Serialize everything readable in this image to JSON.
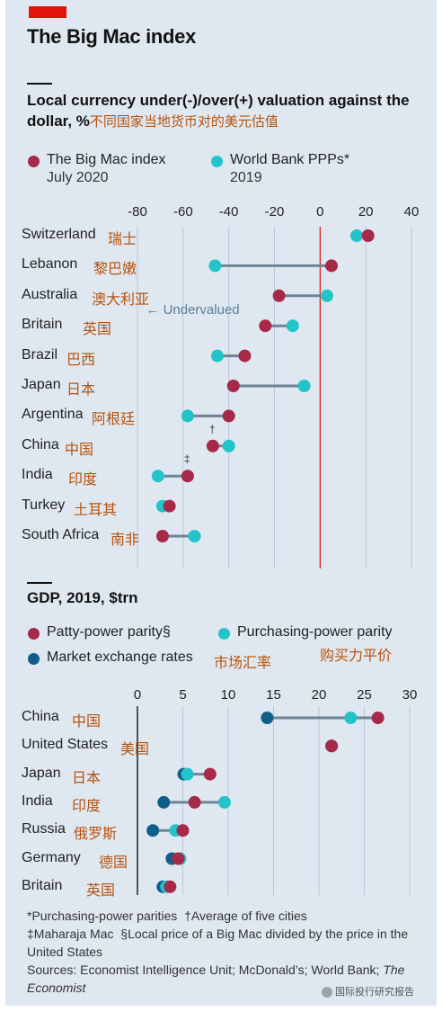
{
  "header": {
    "title": "The Big Mac index"
  },
  "chart_data": [
    {
      "type": "dot",
      "title": "Local currency under(-)/over(+) valuation against the dollar, %",
      "title_note": "不同国家当地货币对的美元估值",
      "annotation": "← Undervalued",
      "xlim": [
        -80,
        40
      ],
      "xticks": [
        "-80",
        "-60",
        "-40",
        "-20",
        "0",
        "20",
        "40"
      ],
      "xtick_values": [
        -80,
        -60,
        -40,
        -20,
        0,
        20,
        40
      ],
      "grid": true,
      "legend_position": "top",
      "series": [
        {
          "name": "The Big Mac index",
          "sub": "July 2020",
          "color": "#a6294a"
        },
        {
          "name": "World Bank PPPs*",
          "sub": "2019",
          "color": "#22c3c9"
        }
      ],
      "rows": [
        {
          "label": "Switzerland",
          "label_cn": "瑞士",
          "mark": "",
          "bigmac": 21,
          "ppp": 16
        },
        {
          "label": "Lebanon",
          "label_cn": "黎巴嫩",
          "mark": "",
          "bigmac": 5,
          "ppp": -46
        },
        {
          "label": "Australia",
          "label_cn": "澳大利亚",
          "mark": "",
          "bigmac": -18,
          "ppp": 3
        },
        {
          "label": "Britain",
          "label_cn": "英国",
          "mark": "",
          "bigmac": -24,
          "ppp": -12
        },
        {
          "label": "Brazil",
          "label_cn": "巴西",
          "mark": "",
          "bigmac": -33,
          "ppp": -45
        },
        {
          "label": "Japan",
          "label_cn": "日本",
          "mark": "",
          "bigmac": -38,
          "ppp": -7
        },
        {
          "label": "Argentina",
          "label_cn": "阿根廷",
          "mark": "",
          "bigmac": -40,
          "ppp": -58
        },
        {
          "label": "China",
          "label_cn": "中国",
          "mark": "†",
          "bigmac": -47,
          "ppp": -40
        },
        {
          "label": "India",
          "label_cn": "印度",
          "mark": "‡",
          "bigmac": -58,
          "ppp": -71
        },
        {
          "label": "Turkey",
          "label_cn": "土耳其",
          "mark": "",
          "bigmac": -66,
          "ppp": -69
        },
        {
          "label": "South Africa",
          "label_cn": "南非",
          "mark": "",
          "bigmac": -69,
          "ppp": -55
        }
      ]
    },
    {
      "type": "dot",
      "title": "GDP, 2019, $trn",
      "xlim": [
        0,
        30
      ],
      "xticks": [
        "0",
        "5",
        "10",
        "15",
        "20",
        "25",
        "30"
      ],
      "xtick_values": [
        0,
        5,
        10,
        15,
        20,
        25,
        30
      ],
      "grid": true,
      "legend_position": "top",
      "series": [
        {
          "name": "Patty-power parity§",
          "color": "#a6294a"
        },
        {
          "name": "Purchasing-power parity",
          "note": "购买力平价",
          "color": "#22c3c9"
        },
        {
          "name": "Market exchange rates",
          "note": "市场汇率",
          "color": "#0f5f8a"
        }
      ],
      "rows": [
        {
          "label": "China",
          "label_cn": "中国",
          "patty": 26.5,
          "ppp": 23.5,
          "market": 14.3
        },
        {
          "label": "United States",
          "label_cn": "美国",
          "patty": 21.4,
          "ppp": 21.4,
          "market": 21.4
        },
        {
          "label": "Japan",
          "label_cn": "日本",
          "patty": 8,
          "ppp": 5.5,
          "market": 5.1
        },
        {
          "label": "India",
          "label_cn": "印度",
          "patty": 6.3,
          "ppp": 9.6,
          "market": 2.9
        },
        {
          "label": "Russia",
          "label_cn": "俄罗斯",
          "patty": 5,
          "ppp": 4.2,
          "market": 1.7
        },
        {
          "label": "Germany",
          "label_cn": "德国",
          "patty": 4.5,
          "ppp": 4.7,
          "market": 3.8
        },
        {
          "label": "Britain",
          "label_cn": "英国",
          "patty": 3.6,
          "ppp": 3.2,
          "market": 2.8
        }
      ]
    }
  ],
  "footnotes": {
    "ppp": "*Purchasing-power parities",
    "avg": "†Average of five cities",
    "maharaja": "‡Maharaja Mac",
    "local": "§Local price of a Big Mac divided by the price in the United States",
    "sources_prefix": "Sources: Economist Intelligence Unit; McDonald’s; World Bank;",
    "sources_italic": "The Economist"
  },
  "watermark": "国际投行研究报告"
}
